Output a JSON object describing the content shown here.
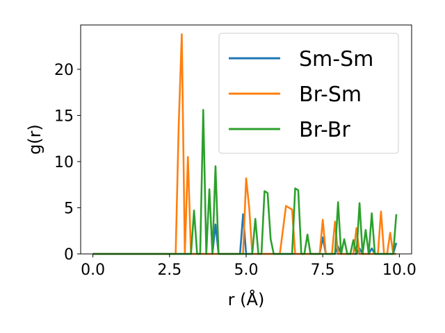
{
  "chart_data": {
    "type": "line",
    "xlabel": "r (Å)",
    "ylabel": "g(r)",
    "xlim": [
      -0.4,
      10.4
    ],
    "ylim": [
      0,
      24.8
    ],
    "x_ticks": [
      {
        "value": 0.0,
        "label": "0.0"
      },
      {
        "value": 2.5,
        "label": "2.5"
      },
      {
        "value": 5.0,
        "label": "5.0"
      },
      {
        "value": 7.5,
        "label": "7.5"
      },
      {
        "value": 10.0,
        "label": "10.0"
      }
    ],
    "y_ticks": [
      {
        "value": 0,
        "label": "0"
      },
      {
        "value": 5,
        "label": "5"
      },
      {
        "value": 10,
        "label": "10"
      },
      {
        "value": 15,
        "label": "15"
      },
      {
        "value": 20,
        "label": "20"
      }
    ],
    "legend": {
      "placement": "top-right"
    },
    "grid": false,
    "series": [
      {
        "name": "Sm-Sm",
        "color": "#1f77b4",
        "points": [
          [
            0,
            0
          ],
          [
            3.8,
            0
          ],
          [
            3.9,
            0
          ],
          [
            4.0,
            3.2
          ],
          [
            4.1,
            0
          ],
          [
            4.7,
            0
          ],
          [
            4.8,
            0
          ],
          [
            4.9,
            4.3
          ],
          [
            5.0,
            0
          ],
          [
            7.4,
            0
          ],
          [
            7.5,
            1.8
          ],
          [
            7.6,
            0
          ],
          [
            7.8,
            0
          ],
          [
            7.9,
            0
          ],
          [
            8.0,
            0.8
          ],
          [
            8.1,
            0
          ],
          [
            8.6,
            0
          ],
          [
            8.7,
            0.6
          ],
          [
            8.8,
            0
          ],
          [
            8.9,
            0
          ],
          [
            9.0,
            0
          ],
          [
            9.1,
            0.6
          ],
          [
            9.2,
            0
          ],
          [
            9.7,
            0
          ],
          [
            9.8,
            0
          ],
          [
            9.9,
            1.2
          ]
        ]
      },
      {
        "name": "Br-Sm",
        "color": "#ff7f0e",
        "points": [
          [
            0,
            0
          ],
          [
            2.7,
            0
          ],
          [
            2.8,
            14.0
          ],
          [
            2.9,
            23.8
          ],
          [
            3.0,
            0
          ],
          [
            3.1,
            10.5
          ],
          [
            3.2,
            0
          ],
          [
            4.9,
            0
          ],
          [
            5.0,
            8.2
          ],
          [
            5.1,
            5.0
          ],
          [
            5.2,
            0
          ],
          [
            6.1,
            0
          ],
          [
            6.3,
            5.2
          ],
          [
            6.5,
            4.8
          ],
          [
            6.6,
            0
          ],
          [
            7.4,
            0
          ],
          [
            7.5,
            3.7
          ],
          [
            7.6,
            0
          ],
          [
            7.8,
            0
          ],
          [
            7.9,
            3.5
          ],
          [
            8.0,
            0
          ],
          [
            8.5,
            0
          ],
          [
            8.6,
            2.8
          ],
          [
            8.7,
            0
          ],
          [
            9.3,
            0
          ],
          [
            9.4,
            4.6
          ],
          [
            9.5,
            0
          ],
          [
            9.6,
            0
          ],
          [
            9.7,
            2.3
          ],
          [
            9.8,
            0
          ],
          [
            9.9,
            0
          ]
        ]
      },
      {
        "name": "Br-Br",
        "color": "#2ca02c",
        "points": [
          [
            0,
            0
          ],
          [
            3.2,
            0
          ],
          [
            3.3,
            4.7
          ],
          [
            3.4,
            0
          ],
          [
            3.5,
            0
          ],
          [
            3.6,
            15.6
          ],
          [
            3.7,
            0
          ],
          [
            3.8,
            7.0
          ],
          [
            3.9,
            0
          ],
          [
            4.0,
            9.5
          ],
          [
            4.1,
            0
          ],
          [
            5.2,
            0
          ],
          [
            5.3,
            3.8
          ],
          [
            5.4,
            0
          ],
          [
            5.5,
            0
          ],
          [
            5.6,
            6.8
          ],
          [
            5.7,
            6.6
          ],
          [
            5.8,
            1.6
          ],
          [
            5.9,
            0
          ],
          [
            6.5,
            0
          ],
          [
            6.6,
            7.1
          ],
          [
            6.7,
            6.9
          ],
          [
            6.8,
            0
          ],
          [
            6.9,
            0
          ],
          [
            7.0,
            2.1
          ],
          [
            7.1,
            0
          ],
          [
            7.9,
            0
          ],
          [
            8.0,
            5.6
          ],
          [
            8.1,
            0
          ],
          [
            8.2,
            1.6
          ],
          [
            8.3,
            0
          ],
          [
            8.4,
            0
          ],
          [
            8.5,
            1.5
          ],
          [
            8.6,
            0
          ],
          [
            8.7,
            5.5
          ],
          [
            8.8,
            0
          ],
          [
            8.9,
            2.6
          ],
          [
            9.0,
            0
          ],
          [
            9.1,
            4.4
          ],
          [
            9.2,
            0
          ],
          [
            9.8,
            0
          ],
          [
            9.9,
            4.3
          ]
        ]
      }
    ]
  }
}
